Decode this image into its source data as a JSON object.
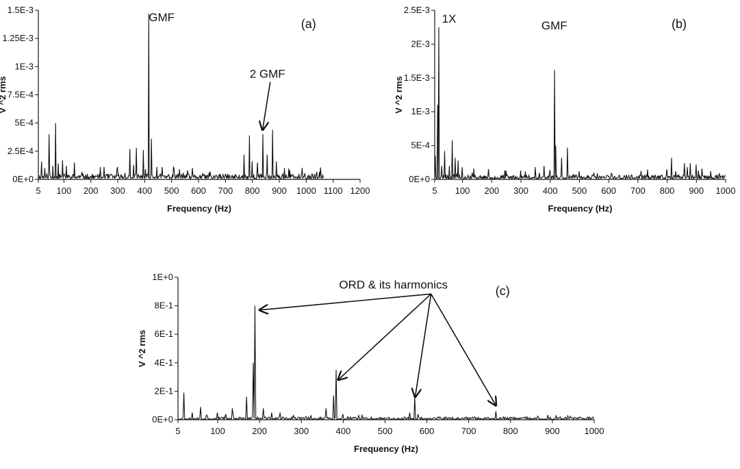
{
  "chart_data": [
    {
      "id": "a",
      "type": "line",
      "panel_label": "(a)",
      "title": "",
      "xlabel": "Frequency (Hz)",
      "ylabel": "V ^2 rms",
      "xlim": [
        5,
        1200
      ],
      "ylim": [
        0,
        0.0015
      ],
      "x_ticks": [
        5,
        100,
        200,
        300,
        400,
        500,
        600,
        700,
        800,
        900,
        1000,
        1100,
        1200
      ],
      "y_ticks": [
        0,
        0.00025,
        0.0005,
        0.00075,
        0.001,
        0.00125,
        0.0015
      ],
      "y_tick_labels": [
        "0E+0",
        "2.5E-4",
        "5E-4",
        "7.5E-4",
        "1E-3",
        "1.25E-3",
        "1.5E-3"
      ],
      "x_data_max": 1065,
      "noise_level": 5e-05,
      "seed": 11,
      "grid": false,
      "peaks": [
        {
          "x": 18,
          "y": 0.00016
        },
        {
          "x": 30,
          "y": 0.0001
        },
        {
          "x": 45,
          "y": 0.0004
        },
        {
          "x": 60,
          "y": 0.00012
        },
        {
          "x": 70,
          "y": 0.0005
        },
        {
          "x": 80,
          "y": 0.00014
        },
        {
          "x": 95,
          "y": 0.00017
        },
        {
          "x": 110,
          "y": 0.00012
        },
        {
          "x": 140,
          "y": 0.00015
        },
        {
          "x": 250,
          "y": 0.00011
        },
        {
          "x": 300,
          "y": 0.00011
        },
        {
          "x": 345,
          "y": 0.00027
        },
        {
          "x": 360,
          "y": 0.00013
        },
        {
          "x": 370,
          "y": 0.00028
        },
        {
          "x": 395,
          "y": 0.00026
        },
        {
          "x": 415,
          "y": 0.00147
        },
        {
          "x": 425,
          "y": 0.00036
        },
        {
          "x": 445,
          "y": 0.00011
        },
        {
          "x": 465,
          "y": 0.00011
        },
        {
          "x": 510,
          "y": 0.0001
        },
        {
          "x": 530,
          "y": 9e-05
        },
        {
          "x": 560,
          "y": 8e-05
        },
        {
          "x": 770,
          "y": 0.00022
        },
        {
          "x": 790,
          "y": 0.00039
        },
        {
          "x": 800,
          "y": 0.00016
        },
        {
          "x": 820,
          "y": 0.00015
        },
        {
          "x": 840,
          "y": 0.0004
        },
        {
          "x": 855,
          "y": 0.00022
        },
        {
          "x": 875,
          "y": 0.00044
        },
        {
          "x": 890,
          "y": 0.00016
        },
        {
          "x": 920,
          "y": 0.0001
        },
        {
          "x": 940,
          "y": 8e-05
        }
      ],
      "annotations": [
        {
          "text": "GMF",
          "x": 415,
          "y": 0.00145
        },
        {
          "text": "2 GMF",
          "x": 790,
          "y": 0.00095,
          "arrow_to": {
            "x": 838,
            "y": 0.00044
          }
        }
      ]
    },
    {
      "id": "b",
      "type": "line",
      "panel_label": "(b)",
      "title": "",
      "xlabel": "Frequency (Hz)",
      "ylabel": "V ^2 rms",
      "xlim": [
        5,
        1000
      ],
      "ylim": [
        0,
        0.0025
      ],
      "x_ticks": [
        5,
        100,
        200,
        300,
        400,
        500,
        600,
        700,
        800,
        900,
        1000
      ],
      "y_ticks": [
        0,
        0.0005,
        0.001,
        0.0015,
        0.002,
        0.0025
      ],
      "y_tick_labels": [
        "0E+0",
        "5E-4",
        "1E-3",
        "1.5E-3",
        "2E-3",
        "2.5E-3"
      ],
      "x_data_max": 1000,
      "noise_level": 7e-05,
      "seed": 23,
      "grid": false,
      "peaks": [
        {
          "x": 8,
          "y": 0.00035
        },
        {
          "x": 15,
          "y": 0.0011
        },
        {
          "x": 20,
          "y": 0.00225
        },
        {
          "x": 30,
          "y": 0.0002
        },
        {
          "x": 40,
          "y": 0.00042
        },
        {
          "x": 55,
          "y": 0.0002
        },
        {
          "x": 65,
          "y": 0.00058
        },
        {
          "x": 75,
          "y": 0.00032
        },
        {
          "x": 85,
          "y": 0.00028
        },
        {
          "x": 100,
          "y": 0.00018
        },
        {
          "x": 140,
          "y": 0.00016
        },
        {
          "x": 300,
          "y": 0.00013
        },
        {
          "x": 350,
          "y": 0.00018
        },
        {
          "x": 380,
          "y": 0.0002
        },
        {
          "x": 400,
          "y": 0.00014
        },
        {
          "x": 415,
          "y": 0.00162
        },
        {
          "x": 420,
          "y": 0.0005
        },
        {
          "x": 440,
          "y": 0.00032
        },
        {
          "x": 460,
          "y": 0.00047
        },
        {
          "x": 500,
          "y": 0.00012
        },
        {
          "x": 550,
          "y": 0.0001
        },
        {
          "x": 800,
          "y": 0.00015
        },
        {
          "x": 815,
          "y": 0.00032
        },
        {
          "x": 830,
          "y": 0.00012
        },
        {
          "x": 860,
          "y": 0.00024
        },
        {
          "x": 870,
          "y": 0.00018
        },
        {
          "x": 880,
          "y": 0.00024
        },
        {
          "x": 900,
          "y": 0.00022
        },
        {
          "x": 920,
          "y": 0.00016
        },
        {
          "x": 950,
          "y": 0.00012
        },
        {
          "x": 980,
          "y": 9e-05
        }
      ],
      "annotations": [
        {
          "text": "1X",
          "x": 30,
          "y": 0.0024
        },
        {
          "text": "GMF",
          "x": 370,
          "y": 0.0023
        }
      ]
    },
    {
      "id": "c",
      "type": "line",
      "panel_label": "(c)",
      "title": "",
      "xlabel": "Frequency (Hz)",
      "ylabel": "V ^2 rms",
      "xlim": [
        5,
        1000
      ],
      "ylim": [
        0,
        1
      ],
      "x_ticks": [
        5,
        100,
        200,
        300,
        400,
        500,
        600,
        700,
        800,
        900,
        1000
      ],
      "y_ticks": [
        0,
        0.2,
        0.4,
        0.6,
        0.8,
        1.0
      ],
      "y_tick_labels": [
        "0E+0",
        "2E-1",
        "4E-1",
        "6E-1",
        "8E-1",
        "1E+0"
      ],
      "x_data_max": 1000,
      "noise_level": 0.02,
      "seed": 37,
      "grid": false,
      "peaks": [
        {
          "x": 20,
          "y": 0.19
        },
        {
          "x": 40,
          "y": 0.05
        },
        {
          "x": 60,
          "y": 0.09
        },
        {
          "x": 100,
          "y": 0.05
        },
        {
          "x": 135,
          "y": 0.08
        },
        {
          "x": 170,
          "y": 0.16
        },
        {
          "x": 185,
          "y": 0.4
        },
        {
          "x": 190,
          "y": 0.8
        },
        {
          "x": 210,
          "y": 0.08
        },
        {
          "x": 230,
          "y": 0.05
        },
        {
          "x": 250,
          "y": 0.05
        },
        {
          "x": 360,
          "y": 0.08
        },
        {
          "x": 378,
          "y": 0.17
        },
        {
          "x": 383,
          "y": 0.35
        },
        {
          "x": 400,
          "y": 0.04
        },
        {
          "x": 560,
          "y": 0.05
        },
        {
          "x": 572,
          "y": 0.16
        },
        {
          "x": 580,
          "y": 0.04
        },
        {
          "x": 765,
          "y": 0.06
        }
      ],
      "annotations": [
        {
          "text": "ORD & its harmonics",
          "x": 520,
          "y": 0.96,
          "arrows_to": [
            {
              "x": 200,
              "y": 0.77
            },
            {
              "x": 388,
              "y": 0.28
            },
            {
              "x": 572,
              "y": 0.16
            },
            {
              "x": 765,
              "y": 0.1
            }
          ]
        }
      ]
    }
  ]
}
